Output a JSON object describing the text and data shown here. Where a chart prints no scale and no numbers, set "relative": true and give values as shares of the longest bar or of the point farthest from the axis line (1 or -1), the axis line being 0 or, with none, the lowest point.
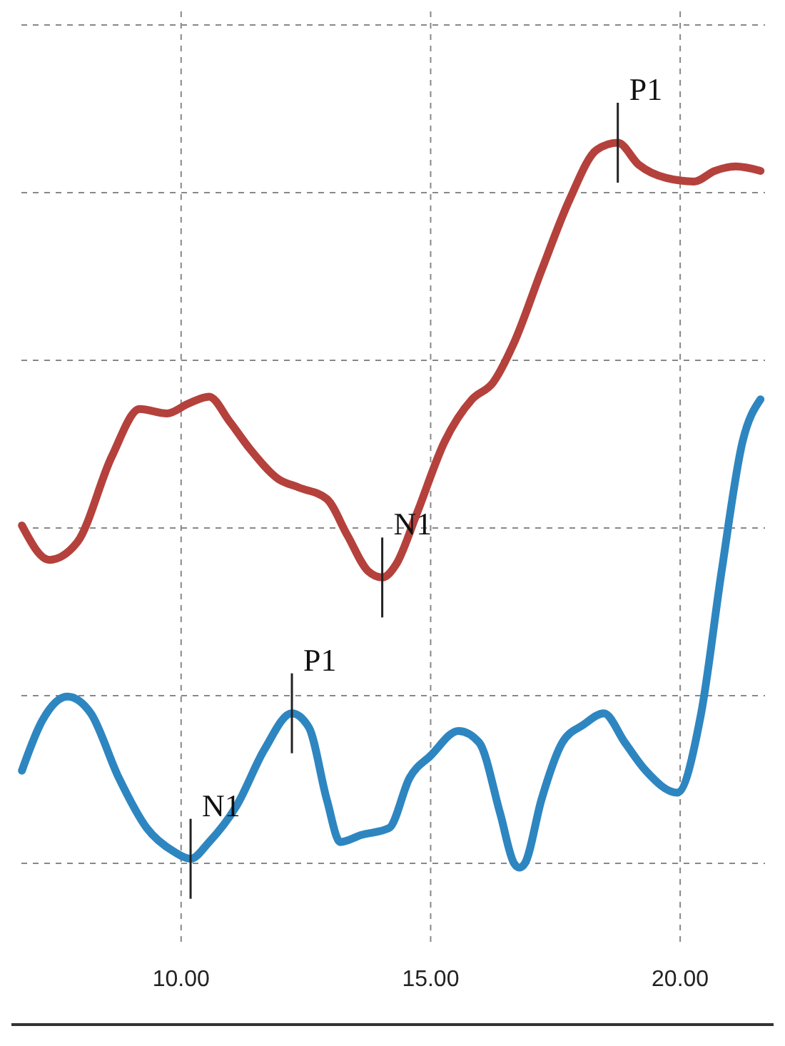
{
  "chart_data": {
    "type": "line",
    "relative": true,
    "x": [
      6.81,
      7.36,
      7.92,
      8.61,
      9.17,
      9.72,
      10.14,
      10.56,
      10.97,
      11.39,
      11.94,
      12.36,
      12.92,
      13.33,
      13.75,
      14.03,
      14.31,
      14.72,
      15.28,
      15.83,
      16.25,
      16.67,
      17.22,
      17.78,
      18.33,
      18.75,
      19.17,
      19.72,
      20.28,
      20.69,
      21.11,
      21.61
    ],
    "series": [
      {
        "color": "#b5413c",
        "values": [
          0.566,
          0.527,
          0.547,
          0.644,
          0.698,
          0.693,
          0.704,
          0.712,
          0.684,
          0.652,
          0.619,
          0.609,
          0.596,
          0.555,
          0.514,
          0.507,
          0.522,
          0.579,
          0.661,
          0.709,
          0.728,
          0.773,
          0.855,
          0.935,
          0.992,
          1,
          0.975,
          0.96,
          0.956,
          0.968,
          0.973,
          0.968
        ]
      },
      {
        "color": "#2e86c1",
        "x": [
          6.81,
          7.22,
          7.72,
          8.19,
          8.75,
          9.31,
          9.86,
          10.19,
          10.56,
          11.11,
          11.67,
          12.22,
          12.56,
          12.92,
          13.19,
          13.61,
          14.17,
          14.58,
          15.0,
          15.56,
          15.97,
          16.39,
          16.67,
          16.78,
          16.89,
          17.22,
          17.64,
          18.06,
          18.47,
          18.89,
          19.31,
          19.94,
          20.42,
          20.83,
          21.25,
          21.61
        ],
        "values": [
          0.288,
          0.345,
          0.372,
          0.353,
          0.28,
          0.223,
          0.196,
          0.188,
          0.207,
          0.248,
          0.312,
          0.353,
          0.337,
          0.255,
          0.207,
          0.215,
          0.223,
          0.28,
          0.305,
          0.333,
          0.32,
          0.24,
          0.183,
          0.178,
          0.183,
          0.255,
          0.32,
          0.34,
          0.353,
          0.32,
          0.288,
          0.263,
          0.353,
          0.514,
          0.661,
          0.709
        ]
      }
    ],
    "xlim": [
      6.8,
      21.7
    ],
    "xticks": [
      {
        "value": 10,
        "label": "10.00"
      },
      {
        "value": 15,
        "label": "15.00"
      },
      {
        "value": 20,
        "label": "20.00"
      }
    ],
    "tick_labels": "x",
    "grid": true,
    "marker": "none",
    "line_style": "solid",
    "annotations": [
      {
        "text": "P1",
        "x": 18.75,
        "y": 1
      },
      {
        "text": "N1",
        "x": 14.03,
        "y": 0.507
      },
      {
        "text": "P1",
        "x": 12.22,
        "y": 0.353
      },
      {
        "text": "N1",
        "x": 10.19,
        "y": 0.188
      }
    ]
  }
}
